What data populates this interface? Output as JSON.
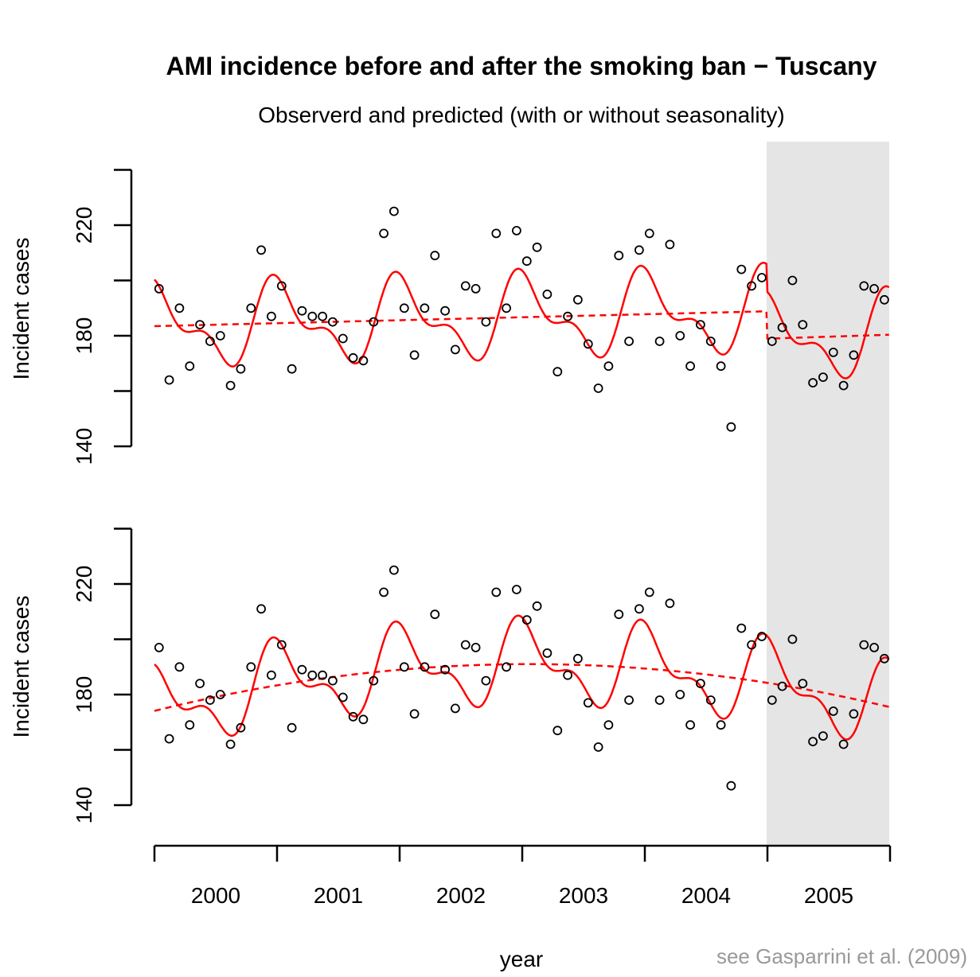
{
  "chart_data": {
    "type": "scatter",
    "title": "AMI incidence before and after the smoking ban − Tuscany",
    "subtitle": "Observerd and predicted (with or without seasonality)",
    "xlabel": "year",
    "ylabel": "Incident cases",
    "footnote": "see Gasparrini et al. (2009)",
    "x_tick_labels": [
      "2000",
      "2001",
      "2002",
      "2003",
      "2004",
      "2005"
    ],
    "y_ticks": [
      140,
      160,
      180,
      200,
      220,
      240
    ],
    "y_tick_labels": [
      "140",
      "180",
      "220"
    ],
    "ylim": [
      140,
      240
    ],
    "xlim": [
      2000,
      2006
    ],
    "shaded_period": [
      2005,
      2006
    ],
    "shade_color": "#e5e5e5",
    "line_color": "#ff0000",
    "observed_monthly_start": "2000-01",
    "observed": [
      197,
      164,
      190,
      169,
      184,
      178,
      180,
      162,
      168,
      190,
      211,
      187,
      198,
      168,
      189,
      187,
      187,
      185,
      179,
      172,
      171,
      185,
      217,
      225,
      190,
      173,
      190,
      209,
      189,
      175,
      198,
      197,
      185,
      217,
      190,
      218,
      207,
      212,
      195,
      167,
      187,
      193,
      177,
      161,
      169,
      209,
      178,
      211,
      217,
      178,
      213,
      180,
      169,
      184,
      178,
      169,
      147,
      204,
      198,
      201,
      178,
      183,
      200,
      184,
      163,
      165,
      174,
      162,
      173,
      198,
      197,
      193
    ],
    "seasonal_deviation_by_month": [
      16.5,
      8,
      1,
      -1,
      0,
      -2,
      -9,
      -14.5,
      -9,
      0,
      12,
      19.5
    ],
    "panels": [
      {
        "name": "top",
        "model": "step-change trend (pre 183.5→188.8, post 179→180.3)",
        "trend_pre": [
          183.5,
          188.8
        ],
        "trend_post": [
          179,
          180.3
        ]
      },
      {
        "name": "bottom",
        "model": "quadratic trend",
        "trend_start": 174.5,
        "trend_peak": 191,
        "trend_end": 176
      }
    ]
  }
}
